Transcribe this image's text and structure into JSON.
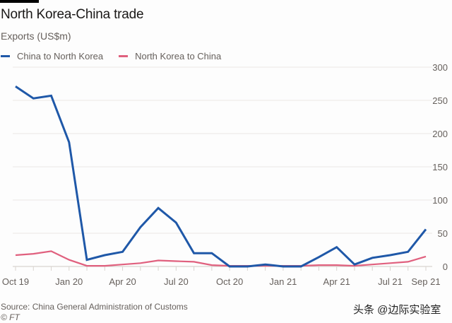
{
  "header": {
    "title": "North Korea-China trade",
    "subtitle": "Exports (US$m)"
  },
  "legend": [
    {
      "label": "China to North Korea",
      "color": "#1f58a8"
    },
    {
      "label": "North Korea to China",
      "color": "#e0607e"
    }
  ],
  "footer": {
    "source": "Source: China General Administration of Customs",
    "copyright": "© FT",
    "watermark": "头条 @边际实验室"
  },
  "chart_data": {
    "type": "line",
    "title": "North Korea-China trade",
    "subtitle": "Exports (US$m)",
    "xlabel": "",
    "ylabel": "Exports (US$m)",
    "ylim": [
      0,
      300
    ],
    "yticks": [
      0,
      50,
      100,
      150,
      200,
      250,
      300
    ],
    "y_axis_position": "right",
    "grid": true,
    "legend_position": "top-left",
    "x": [
      "Oct 19",
      "Nov 19",
      "Dec 19",
      "Jan 20",
      "Feb 20",
      "Mar 20",
      "Apr 20",
      "May 20",
      "Jun 20",
      "Jul 20",
      "Aug 20",
      "Sep 20",
      "Oct 20",
      "Nov 20",
      "Dec 20",
      "Jan 21",
      "Feb 21",
      "Mar 21",
      "Apr 21",
      "May 21",
      "Jun 21",
      "Jul 21",
      "Aug 21",
      "Sep 21"
    ],
    "xtick_labels": [
      "Oct 19",
      "Jan 20",
      "Apr 20",
      "Jul 20",
      "Oct 20",
      "Jan 21",
      "Apr 21",
      "Jul 21",
      "Sep 21"
    ],
    "xtick_indices": [
      0,
      3,
      6,
      9,
      12,
      15,
      18,
      21,
      23
    ],
    "series": [
      {
        "name": "China to North Korea",
        "color": "#1f58a8",
        "values": [
          271,
          253,
          257,
          187,
          10,
          17,
          22,
          59,
          88,
          66,
          20,
          20,
          0,
          0,
          3,
          0,
          0,
          14,
          29,
          3,
          13,
          17,
          22,
          56
        ]
      },
      {
        "name": "North Korea to China",
        "color": "#e0607e",
        "values": [
          17,
          19,
          23,
          10,
          1,
          1,
          3,
          5,
          9,
          8,
          7,
          2,
          1,
          1,
          1,
          1,
          1,
          2,
          2,
          1,
          3,
          5,
          7,
          15
        ]
      }
    ]
  }
}
